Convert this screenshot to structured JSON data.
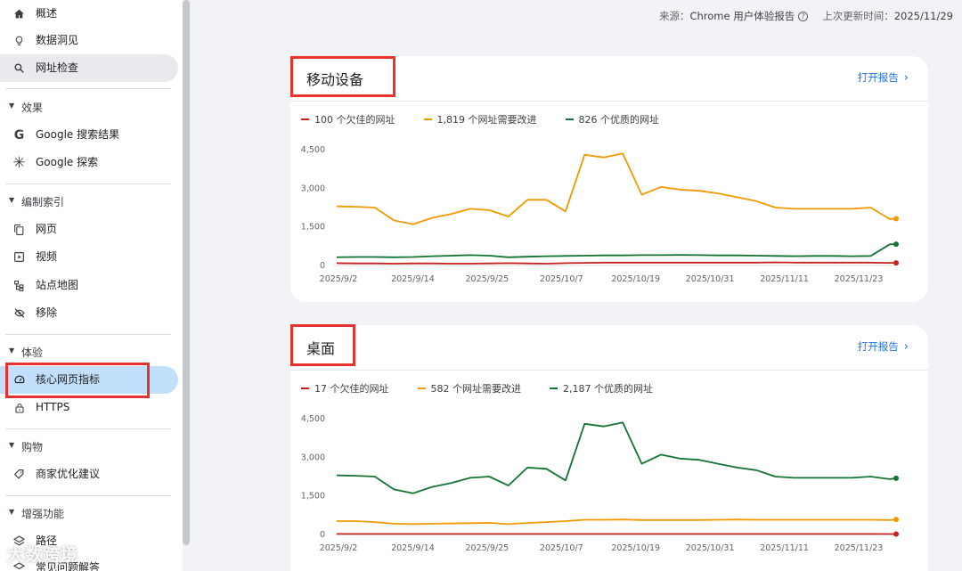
{
  "sidebar": {
    "items": [
      {
        "label": "概述",
        "icon": "home-icon"
      },
      {
        "label": "数据洞见",
        "icon": "lightbulb-icon"
      },
      {
        "label": "网址检查",
        "icon": "search-icon"
      }
    ],
    "sections": [
      {
        "title": "效果",
        "items": [
          {
            "label": "Google 搜索结果",
            "icon": "google-g-icon"
          },
          {
            "label": "Google 探索",
            "icon": "asterisk-icon"
          }
        ]
      },
      {
        "title": "编制索引",
        "items": [
          {
            "label": "网页",
            "icon": "pages-icon"
          },
          {
            "label": "视频",
            "icon": "video-icon"
          },
          {
            "label": "站点地图",
            "icon": "sitemap-icon"
          },
          {
            "label": "移除",
            "icon": "eye-off-icon"
          }
        ]
      },
      {
        "title": "体验",
        "items": [
          {
            "label": "核心网页指标",
            "icon": "gauge-icon"
          },
          {
            "label": "HTTPS",
            "icon": "lock-icon"
          }
        ]
      },
      {
        "title": "购物",
        "items": [
          {
            "label": "商家优化建议",
            "icon": "tag-icon"
          }
        ]
      },
      {
        "title": "增强功能",
        "items": [
          {
            "label": "路径",
            "icon": "breadcrumb-icon"
          },
          {
            "label": "常见问题解答",
            "icon": "faq-icon"
          }
        ]
      }
    ]
  },
  "topbar": {
    "source_label": "来源：",
    "source_value": "Chrome 用户体验报告",
    "updated_label": "上次更新时间：",
    "updated_value": "2025/11/29"
  },
  "cards": [
    {
      "title": "移动设备",
      "open_report": "打开报告",
      "legend": [
        {
          "text": "100 个欠佳的网址",
          "color": "#c5221f"
        },
        {
          "text": "1,819 个网址需要改进",
          "color": "#f29900"
        },
        {
          "text": "826 个优质的网址",
          "color": "#137333"
        }
      ]
    },
    {
      "title": "桌面",
      "open_report": "打开报告",
      "legend": [
        {
          "text": "17 个欠佳的网址",
          "color": "#c5221f"
        },
        {
          "text": "582 个网址需要改进",
          "color": "#f29900"
        },
        {
          "text": "2,187 个优质的网址",
          "color": "#137333"
        }
      ]
    }
  ],
  "watermark": "大数跨境",
  "chart_data": [
    {
      "type": "line",
      "title": "移动设备",
      "ylim": [
        0,
        4500
      ],
      "yticks": [
        "0",
        "1,500",
        "3,000",
        "4,500"
      ],
      "xticks": [
        "2025/9/2",
        "2025/9/14",
        "2025/9/25",
        "2025/10/7",
        "2025/10/19",
        "2025/10/31",
        "2025/11/11",
        "2025/11/23"
      ],
      "x": [
        0,
        3,
        6,
        9,
        12,
        15,
        18,
        21,
        24,
        27,
        30,
        33,
        36,
        39,
        42,
        45,
        48,
        51,
        54,
        57,
        60,
        63,
        66,
        69,
        72,
        75,
        78,
        81,
        84,
        87,
        88
      ],
      "series": [
        {
          "name": "100 个欠佳的网址",
          "color": "#c5221f",
          "values": [
            90,
            80,
            80,
            70,
            80,
            80,
            70,
            70,
            80,
            90,
            80,
            70,
            90,
            100,
            110,
            110,
            110,
            110,
            110,
            110,
            110,
            110,
            110,
            120,
            110,
            110,
            110,
            110,
            110,
            100,
            100
          ]
        },
        {
          "name": "1,819 个网址需要改进",
          "color": "#f29900",
          "values": [
            2300,
            2280,
            2250,
            1750,
            1600,
            1850,
            2000,
            2200,
            2150,
            1900,
            2550,
            2550,
            2100,
            4300,
            4200,
            4350,
            2750,
            3050,
            2950,
            2900,
            2800,
            2650,
            2500,
            2250,
            2200,
            2200,
            2200,
            2200,
            2250,
            1800,
            1819
          ]
        },
        {
          "name": "826 个优质的网址",
          "color": "#137333",
          "values": [
            320,
            330,
            330,
            320,
            330,
            360,
            380,
            400,
            380,
            320,
            340,
            360,
            370,
            380,
            390,
            390,
            400,
            400,
            410,
            400,
            390,
            390,
            380,
            370,
            360,
            370,
            370,
            360,
            370,
            820,
            826
          ]
        }
      ]
    },
    {
      "type": "line",
      "title": "桌面",
      "ylim": [
        0,
        4500
      ],
      "yticks": [
        "0",
        "1,500",
        "3,000",
        "4,500"
      ],
      "xticks": [
        "2025/9/2",
        "2025/9/14",
        "2025/9/25",
        "2025/10/7",
        "2025/10/19",
        "2025/10/31",
        "2025/11/11",
        "2025/11/23"
      ],
      "x": [
        0,
        3,
        6,
        9,
        12,
        15,
        18,
        21,
        24,
        27,
        30,
        33,
        36,
        39,
        42,
        45,
        48,
        51,
        54,
        57,
        60,
        63,
        66,
        69,
        72,
        75,
        78,
        81,
        84,
        87,
        88
      ],
      "series": [
        {
          "name": "17 个欠佳的网址",
          "color": "#c5221f",
          "values": [
            20,
            20,
            20,
            20,
            20,
            20,
            20,
            20,
            20,
            20,
            20,
            20,
            20,
            20,
            20,
            20,
            20,
            20,
            20,
            20,
            20,
            20,
            20,
            20,
            20,
            20,
            20,
            20,
            20,
            17,
            17
          ]
        },
        {
          "name": "582 个网址需要改进",
          "color": "#f29900",
          "values": [
            520,
            520,
            480,
            420,
            400,
            420,
            430,
            440,
            450,
            400,
            450,
            480,
            520,
            570,
            570,
            580,
            560,
            560,
            560,
            560,
            570,
            580,
            570,
            570,
            570,
            570,
            570,
            570,
            570,
            560,
            582
          ]
        },
        {
          "name": "2,187 个优质的网址",
          "color": "#137333",
          "values": [
            2300,
            2280,
            2250,
            1750,
            1600,
            1850,
            2000,
            2200,
            2250,
            1900,
            2600,
            2550,
            2100,
            4300,
            4200,
            4350,
            2750,
            3100,
            2950,
            2900,
            2750,
            2600,
            2500,
            2250,
            2200,
            2200,
            2200,
            2200,
            2250,
            2150,
            2187
          ]
        }
      ]
    }
  ]
}
